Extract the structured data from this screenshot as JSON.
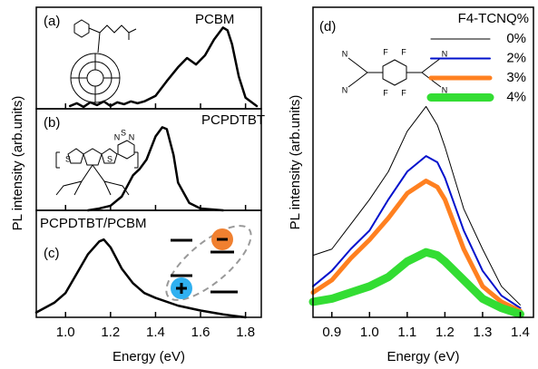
{
  "chart_data": [
    {
      "type": "line",
      "panel_label": "(a)",
      "sample_label": "PCBM",
      "color": "#000000",
      "width": 2.5,
      "x": [
        1.02,
        1.05,
        1.08,
        1.11,
        1.14,
        1.17,
        1.2,
        1.23,
        1.26,
        1.29,
        1.32,
        1.35,
        1.4,
        1.45,
        1.5,
        1.54,
        1.58,
        1.62,
        1.66,
        1.7,
        1.72,
        1.74,
        1.77,
        1.8,
        1.85
      ],
      "values": [
        0.03,
        0.06,
        0.02,
        0.07,
        0.04,
        0.08,
        0.03,
        0.07,
        0.05,
        0.08,
        0.06,
        0.08,
        0.14,
        0.3,
        0.45,
        0.55,
        0.48,
        0.58,
        0.75,
        0.88,
        0.85,
        0.7,
        0.35,
        0.12,
        0.03
      ],
      "xlim": [
        0.87,
        1.87
      ],
      "ylim": [
        0,
        1.1
      ]
    },
    {
      "type": "line",
      "panel_label": "(b)",
      "sample_label": "PCPDTBT",
      "ylabel": "PL intensity (arb.units)",
      "structure_atoms": [
        "S",
        "N"
      ],
      "color": "#000000",
      "width": 2.5,
      "x": [
        1.1,
        1.15,
        1.2,
        1.25,
        1.3,
        1.33,
        1.36,
        1.4,
        1.43,
        1.45,
        1.48,
        1.5,
        1.55,
        1.6,
        1.7
      ],
      "values": [
        0,
        0.02,
        0.05,
        0.15,
        0.38,
        0.45,
        0.55,
        0.8,
        0.9,
        0.88,
        0.6,
        0.3,
        0.08,
        0.02,
        0
      ],
      "xlim": [
        0.87,
        1.87
      ],
      "ylim": [
        0,
        1.1
      ]
    },
    {
      "type": "line",
      "panel_label": "(c)",
      "sample_label": "PCPDTBT/PCBM",
      "xlabel": "Energy (eV)",
      "color": "#000000",
      "width": 2.5,
      "x": [
        0.87,
        0.95,
        1.0,
        1.05,
        1.1,
        1.15,
        1.17,
        1.2,
        1.25,
        1.3,
        1.35,
        1.4,
        1.5,
        1.6,
        1.7,
        1.8
      ],
      "values": [
        0.05,
        0.15,
        0.25,
        0.45,
        0.65,
        0.78,
        0.8,
        0.72,
        0.5,
        0.35,
        0.25,
        0.2,
        0.12,
        0.07,
        0.03,
        0
      ],
      "xlim": [
        0.87,
        1.87
      ],
      "ylim": [
        0,
        1.1
      ],
      "xticks": [
        {
          "value": 1,
          "label": "1.0"
        },
        1.2,
        1.4,
        1.6,
        1.8
      ]
    },
    {
      "type": "line",
      "panel_label": "(d)",
      "legend_title": "F4-TCNQ%",
      "xlabel": "Energy (eV)",
      "ylabel": "PL intensity (arb.units)",
      "structure_atoms": [
        "N",
        "F"
      ],
      "x": [
        0.85,
        0.9,
        0.95,
        1.0,
        1.05,
        1.1,
        1.15,
        1.18,
        1.2,
        1.25,
        1.3,
        1.35,
        1.4
      ],
      "series": [
        {
          "name": "0%",
          "color": "#000000",
          "width": 1,
          "values": [
            0.2,
            0.22,
            0.3,
            0.38,
            0.47,
            0.6,
            0.68,
            0.62,
            0.55,
            0.35,
            0.22,
            0.1,
            0.04
          ]
        },
        {
          "name": "2%",
          "color": "#0010cc",
          "width": 2,
          "values": [
            0.1,
            0.15,
            0.22,
            0.28,
            0.38,
            0.47,
            0.52,
            0.5,
            0.45,
            0.28,
            0.15,
            0.07,
            0.03
          ]
        },
        {
          "name": "3%",
          "color": "#ff8020",
          "width": 5,
          "values": [
            0.08,
            0.12,
            0.19,
            0.25,
            0.32,
            0.4,
            0.44,
            0.42,
            0.38,
            0.22,
            0.1,
            0.05,
            0.02
          ]
        },
        {
          "name": "4%",
          "color": "#33dd33",
          "width": 9,
          "values": [
            0.05,
            0.06,
            0.08,
            0.1,
            0.13,
            0.18,
            0.21,
            0.2,
            0.18,
            0.12,
            0.06,
            0.03,
            0.01
          ]
        }
      ],
      "xlim": [
        0.85,
        1.435
      ],
      "ylim": [
        0,
        1
      ],
      "xticks": [
        0.9,
        {
          "value": 1,
          "label": "1.0"
        },
        1.1,
        1.2,
        1.3,
        1.4
      ]
    }
  ]
}
